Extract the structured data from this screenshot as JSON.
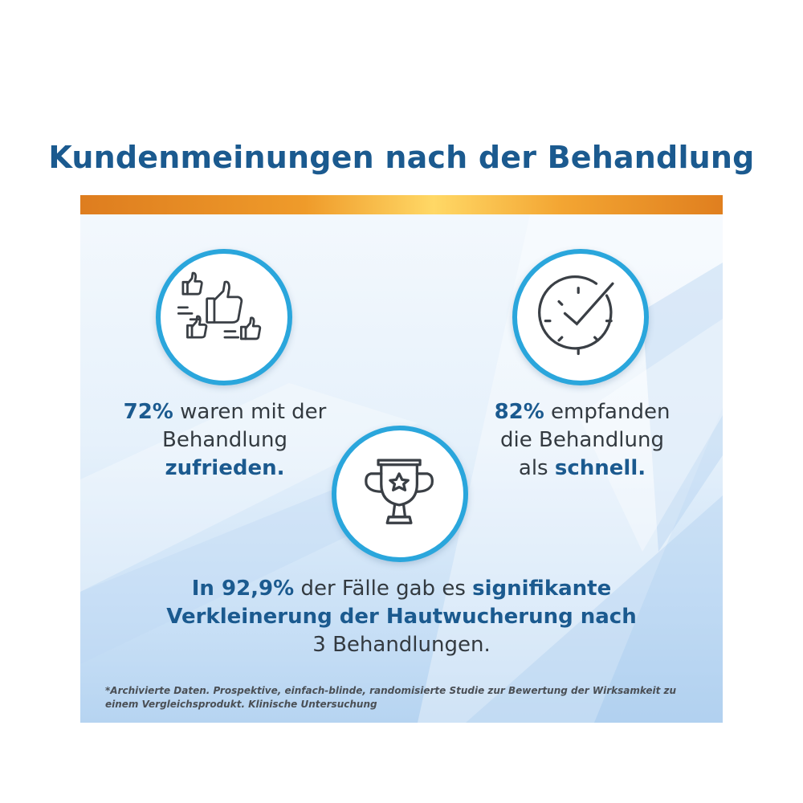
{
  "title": "Kundenmeinungen nach der Behandlung",
  "colors": {
    "accent_blue": "#1b5a8f",
    "ring_blue": "#2aa6dc",
    "bar_orange": "#ef9b2a",
    "bar_gold": "#ffd866"
  },
  "icons": {
    "left": "thumbs-up-icon",
    "right": "clock-check-icon",
    "center": "trophy-star-icon"
  },
  "stats": {
    "satisfied": {
      "percent": "72%",
      "line1_rest": " waren mit der",
      "line2": "Behandlung",
      "line3": "zufrieden."
    },
    "fast": {
      "percent": "82%",
      "line1_rest": " empfanden",
      "line2": "die Behandlung",
      "line3_prefix": "als ",
      "line3_bold": "schnell."
    },
    "reduction": {
      "prefix": "In 92,9%",
      "middle": " der Fälle gab es ",
      "bold1": "signifikante",
      "line2": "Verkleinerung der Hautwucherung nach",
      "line3": "3 Behandlungen."
    }
  },
  "footnote": "*Archivierte Daten. Prospektive, einfach-blinde, randomisierte Studie zur Bewertung der Wirksamkeit zu einem Vergleichsprodukt. Klinische Untersuchung"
}
